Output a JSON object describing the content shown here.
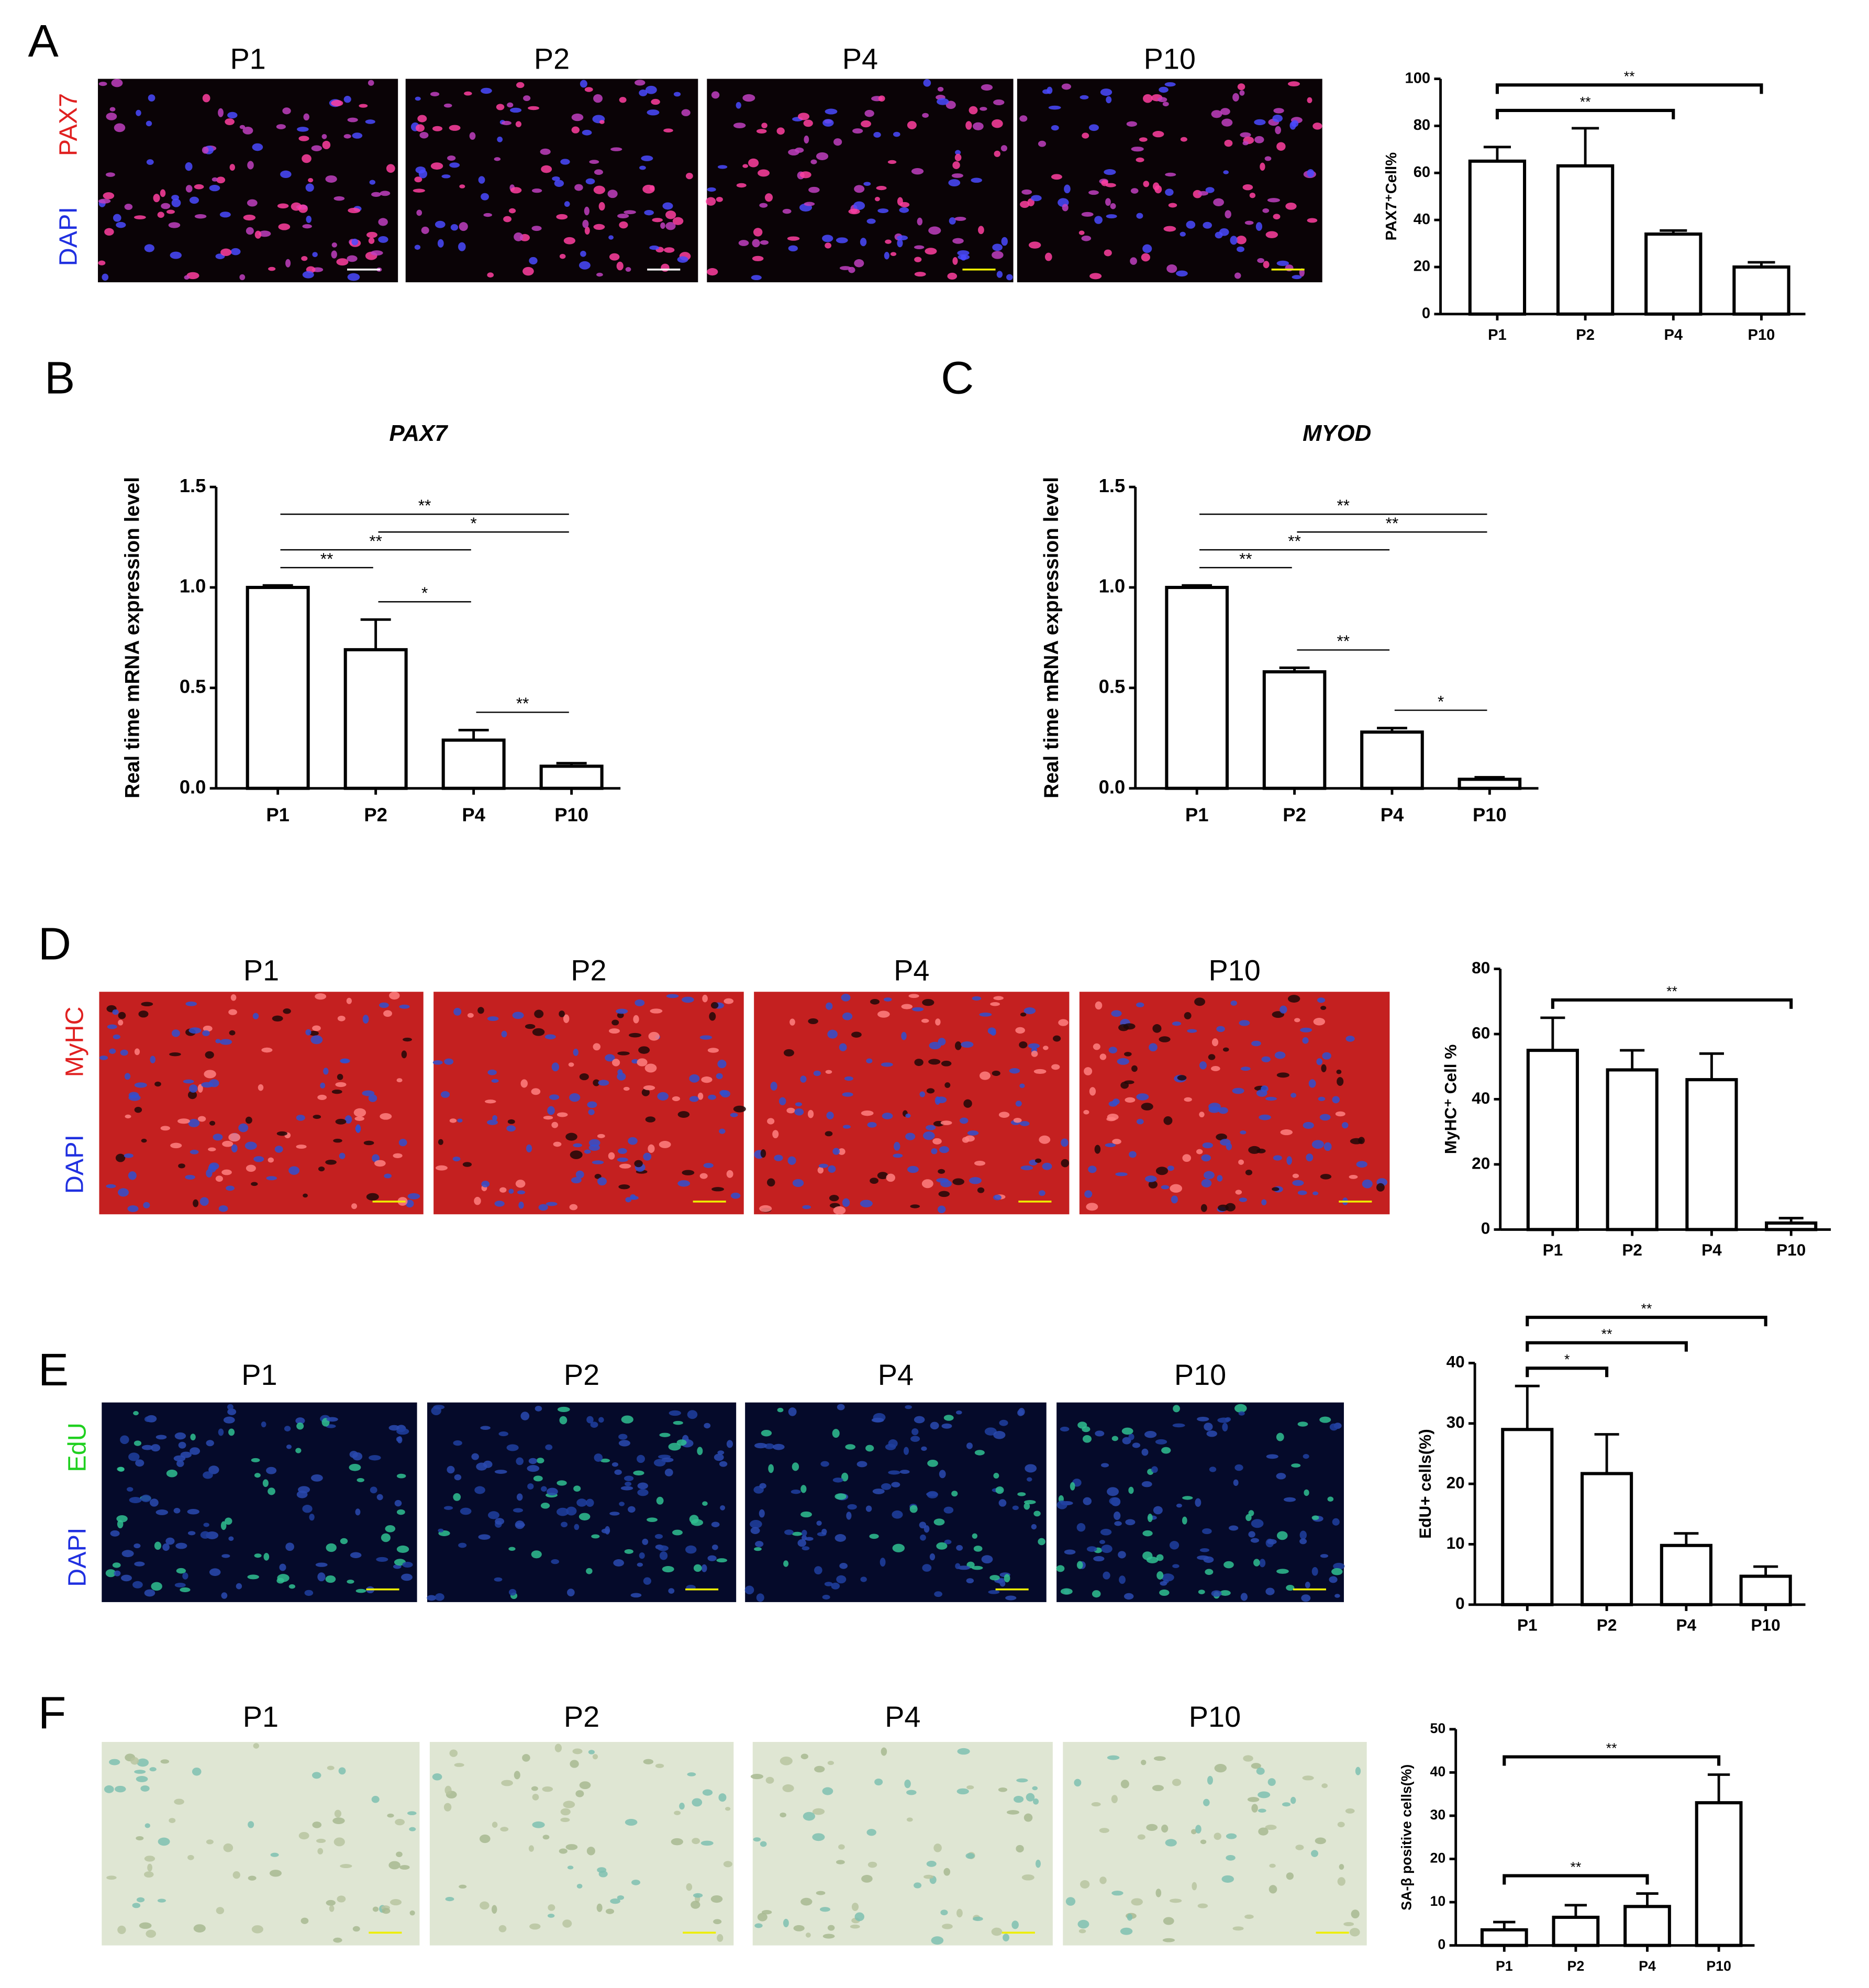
{
  "panel_letters": [
    "A",
    "B",
    "C",
    "D",
    "E",
    "F"
  ],
  "image_rows": [
    {
      "stains": [
        {
          "label": "PAX7",
          "color": "#e02020"
        },
        {
          "label": "DAPI",
          "color": "#2030e0"
        }
      ],
      "images": [
        "P1",
        "P2",
        "P4",
        "P10"
      ]
    },
    {
      "stains": [
        {
          "label": "MyHC",
          "color": "#e02020"
        },
        {
          "label": "DAPI",
          "color": "#2030e0"
        }
      ],
      "images": [
        "P1",
        "P2",
        "P4",
        "P10"
      ]
    },
    {
      "stains": [
        {
          "label": "EdU",
          "color": "#20d020"
        },
        {
          "label": "DAPI",
          "color": "#2030e0"
        }
      ],
      "images": [
        "P1",
        "P2",
        "P4",
        "P10"
      ]
    },
    {
      "stains": [],
      "images": [
        "P1",
        "P2",
        "P4",
        "P10"
      ]
    }
  ],
  "chart_data": [
    {
      "type": "bar",
      "y_label": "PAX7⁺Cell%",
      "categories": [
        "P1",
        "P2",
        "P4",
        "P10"
      ],
      "values": [
        65,
        63,
        34,
        20
      ],
      "errors": [
        6,
        16,
        1.5,
        2
      ],
      "ylim": [
        0,
        100
      ],
      "yticks": [
        0,
        20,
        40,
        60,
        80,
        100
      ],
      "significance": [
        {
          "from": 0,
          "to": 2,
          "label": "**"
        },
        {
          "from": 0,
          "to": 3,
          "label": "**"
        }
      ]
    },
    {
      "type": "bar",
      "title": "PAX7",
      "y_label": "Real time mRNA expression level",
      "categories": [
        "P1",
        "P2",
        "P4",
        "P10"
      ],
      "values": [
        1.0,
        0.69,
        0.24,
        0.11
      ],
      "errors": [
        0.01,
        0.15,
        0.05,
        0.015
      ],
      "ylim": [
        0,
        1.5
      ],
      "yticks": [
        {
          "value": 0,
          "label": "0.0"
        },
        0.5,
        {
          "value": 1,
          "label": "1.0"
        },
        1.5
      ],
      "significance": [
        {
          "from": 0,
          "to": 1,
          "label": "**"
        },
        {
          "from": 0,
          "to": 2,
          "label": "**"
        },
        {
          "from": 0,
          "to": 3,
          "label": "**"
        },
        {
          "from": 1,
          "to": 2,
          "label": "*"
        },
        {
          "from": 1,
          "to": 3,
          "label": "*"
        },
        {
          "from": 2,
          "to": 3,
          "label": "**"
        }
      ]
    },
    {
      "type": "bar",
      "title": "MYOD",
      "y_label": "Real time mRNA expression level",
      "categories": [
        "P1",
        "P2",
        "P4",
        "P10"
      ],
      "values": [
        1.0,
        0.58,
        0.28,
        0.045
      ],
      "errors": [
        0.01,
        0.02,
        0.02,
        0.01
      ],
      "ylim": [
        0,
        1.5
      ],
      "yticks": [
        {
          "value": 0,
          "label": "0.0"
        },
        0.5,
        {
          "value": 1,
          "label": "1.0"
        },
        1.5
      ],
      "significance": [
        {
          "from": 0,
          "to": 1,
          "label": "**"
        },
        {
          "from": 0,
          "to": 2,
          "label": "**"
        },
        {
          "from": 0,
          "to": 3,
          "label": "**"
        },
        {
          "from": 1,
          "to": 2,
          "label": "**"
        },
        {
          "from": 1,
          "to": 3,
          "label": "**"
        },
        {
          "from": 2,
          "to": 3,
          "label": "*"
        }
      ]
    },
    {
      "type": "bar",
      "y_label": "MyHC⁺ Cell %",
      "categories": [
        "P1",
        "P2",
        "P4",
        "P10"
      ],
      "values": [
        55,
        49,
        46,
        2
      ],
      "errors": [
        10,
        6,
        8,
        1.5
      ],
      "ylim": [
        0,
        80
      ],
      "yticks": [
        0,
        20,
        40,
        60,
        80
      ],
      "significance": [
        {
          "from": 0,
          "to": 3,
          "label": "**"
        }
      ]
    },
    {
      "type": "bar",
      "y_label": "EdU+ cells(%)",
      "categories": [
        "P1",
        "P2",
        "P4",
        "P10"
      ],
      "values": [
        29,
        21.7,
        9.8,
        4.7
      ],
      "errors": [
        7.2,
        6.5,
        2,
        1.6
      ],
      "ylim": [
        0,
        40
      ],
      "yticks": [
        0,
        10,
        20,
        30,
        40
      ],
      "significance": [
        {
          "from": 0,
          "to": 1,
          "label": "*"
        },
        {
          "from": 0,
          "to": 2,
          "label": "**"
        },
        {
          "from": 0,
          "to": 3,
          "label": "**"
        }
      ]
    },
    {
      "type": "bar",
      "y_label": "SA-β positive cells(%)",
      "categories": [
        "P1",
        "P2",
        "P4",
        "P10"
      ],
      "values": [
        3.6,
        6.5,
        9,
        33
      ],
      "errors": [
        1.8,
        2.8,
        3,
        6.5
      ],
      "ylim": [
        0,
        50
      ],
      "yticks": [
        0,
        10,
        20,
        30,
        40,
        50
      ],
      "significance": [
        {
          "from": 0,
          "to": 2,
          "label": "**"
        },
        {
          "from": 0,
          "to": 3,
          "label": "**"
        }
      ]
    }
  ]
}
